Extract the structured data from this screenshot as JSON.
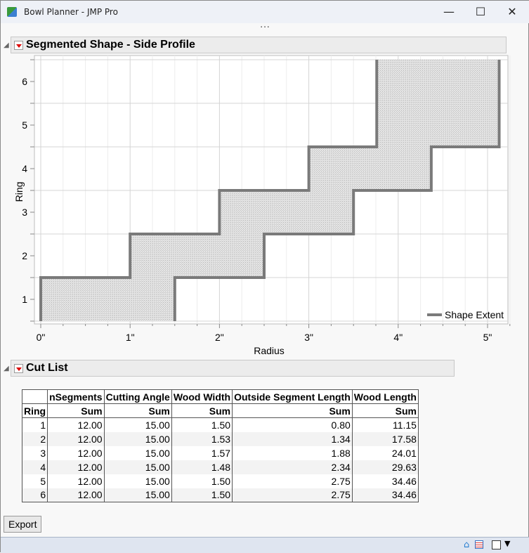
{
  "window": {
    "title": "Bowl Planner - JMP Pro",
    "minimize": "—",
    "maximize": "☐",
    "close": "✕",
    "more": "..."
  },
  "profile": {
    "title": "Segmented Shape -  Side Profile"
  },
  "chart_data": {
    "type": "area",
    "xlabel": "Radius",
    "ylabel": "Ring",
    "xlim": [
      -0.07,
      5.3
    ],
    "ylim": [
      0.5,
      6.5
    ],
    "x_ticks": [
      "0\"",
      "1\"",
      "2\"",
      "3\"",
      "4\"",
      "5\""
    ],
    "y_ticks": [
      "1",
      "2",
      "3",
      "4",
      "5",
      "6"
    ],
    "grid": true,
    "legend": {
      "position": "bottom-right",
      "entries": [
        "Shape Extent"
      ]
    },
    "series": [
      {
        "name": "Shape Extent",
        "color": "#7a7a7a",
        "rings": [
          1,
          2,
          3,
          4,
          5,
          6
        ],
        "inner_radius": [
          0,
          1.0,
          2.0,
          3.0,
          3.76,
          3.76
        ],
        "outer_radius": [
          1.5,
          2.5,
          3.5,
          4.37,
          5.13,
          5.13
        ]
      }
    ]
  },
  "cutlist": {
    "title": "Cut List",
    "columns": [
      "nSegments",
      "Cutting Angle",
      "Wood Width",
      "Outside Segment Length",
      "Wood Length"
    ],
    "row_header": "Ring",
    "stat": "Sum",
    "rows": [
      [
        "1",
        "12.00",
        "15.00",
        "1.50",
        "0.80",
        "11.15"
      ],
      [
        "2",
        "12.00",
        "15.00",
        "1.53",
        "1.34",
        "17.58"
      ],
      [
        "3",
        "12.00",
        "15.00",
        "1.57",
        "1.88",
        "24.01"
      ],
      [
        "4",
        "12.00",
        "15.00",
        "1.48",
        "2.34",
        "29.63"
      ],
      [
        "5",
        "12.00",
        "15.00",
        "1.50",
        "2.75",
        "34.46"
      ],
      [
        "6",
        "12.00",
        "15.00",
        "1.50",
        "2.75",
        "34.46"
      ]
    ]
  },
  "export_label": "Export",
  "statusbar": {
    "home_icon": "home-icon",
    "grid_icon": "table-icon"
  }
}
